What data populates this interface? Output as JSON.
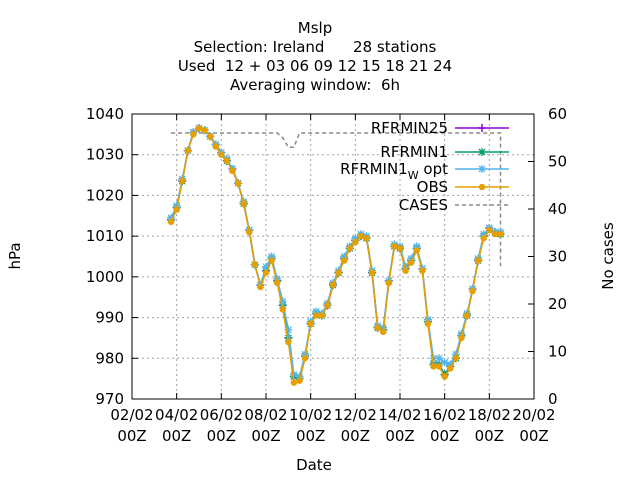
{
  "chart_data": {
    "type": "line",
    "title_lines": [
      "Mslp",
      "Selection: Ireland      28 stations",
      "Used  12 + 03 06 09 12 15 18 21 24",
      "Averaging window:  6h"
    ],
    "xlabel": "Date",
    "ylabel": "hPa",
    "y2label": "No cases",
    "x_range_days": [
      0,
      18
    ],
    "ylim": [
      970,
      1040
    ],
    "y2lim": [
      0,
      60
    ],
    "x_ticks": [
      {
        "day": 0,
        "line1": "02/02",
        "line2": "00Z"
      },
      {
        "day": 2,
        "line1": "04/02",
        "line2": "00Z"
      },
      {
        "day": 4,
        "line1": "06/02",
        "line2": "00Z"
      },
      {
        "day": 6,
        "line1": "08/02",
        "line2": "00Z"
      },
      {
        "day": 8,
        "line1": "10/02",
        "line2": "00Z"
      },
      {
        "day": 10,
        "line1": "12/02",
        "line2": "00Z"
      },
      {
        "day": 12,
        "line1": "14/02",
        "line2": "00Z"
      },
      {
        "day": 14,
        "line1": "16/02",
        "line2": "00Z"
      },
      {
        "day": 16,
        "line1": "18/02",
        "line2": "00Z"
      },
      {
        "day": 18,
        "line1": "20/02",
        "line2": "00Z"
      }
    ],
    "y_ticks": [
      970,
      980,
      990,
      1000,
      1010,
      1020,
      1030,
      1040
    ],
    "y2_ticks": [
      0,
      10,
      20,
      30,
      40,
      50,
      60
    ],
    "legend_position": "top-right",
    "x": [
      1.75,
      2.0,
      2.25,
      2.5,
      2.75,
      3.0,
      3.25,
      3.5,
      3.75,
      4.0,
      4.25,
      4.5,
      4.75,
      5.0,
      5.25,
      5.5,
      5.75,
      6.0,
      6.25,
      6.5,
      6.75,
      7.0,
      7.25,
      7.5,
      7.75,
      8.0,
      8.25,
      8.5,
      8.75,
      9.0,
      9.25,
      9.5,
      9.75,
      10.0,
      10.25,
      10.5,
      10.75,
      11.0,
      11.25,
      11.5,
      11.75,
      12.0,
      12.25,
      12.5,
      12.75,
      13.0,
      13.25,
      13.5,
      13.75,
      14.0,
      14.25,
      14.5,
      14.75,
      15.0,
      15.25,
      15.5,
      15.75,
      16.0,
      16.25,
      16.5
    ],
    "series": [
      {
        "name": "RFRMIN25",
        "color": "#9400d3",
        "marker": "plus",
        "values": [
          1014,
          1017,
          1023.5,
          1031,
          1035.5,
          1036.5,
          1036,
          1034.5,
          1032.5,
          1030.5,
          1028.5,
          1026.5,
          1023,
          1018,
          1011.5,
          1003,
          998,
          1001.5,
          1004.5,
          999,
          993,
          985,
          975.5,
          975,
          980.5,
          988.5,
          991,
          990.5,
          993,
          998,
          1001,
          1004.5,
          1007,
          1009,
          1010,
          1009.5,
          1001,
          987.5,
          987,
          999,
          1007.5,
          1007,
          1002,
          1004,
          1007,
          1002,
          989,
          978.5,
          978.5,
          976,
          978,
          980,
          985.5,
          990.5,
          997,
          1004,
          1010,
          1012,
          1011,
          1010.5
        ]
      },
      {
        "name": "RFRMIN1",
        "color": "#009e73",
        "marker": "star",
        "values": [
          1014,
          1017,
          1023.5,
          1031,
          1035.5,
          1036.5,
          1036,
          1034.5,
          1032.5,
          1030.5,
          1028.5,
          1026.5,
          1023,
          1018,
          1011.5,
          1003,
          998,
          1001.5,
          1004.5,
          999,
          993,
          985,
          975.5,
          975,
          980.5,
          988.5,
          991,
          990.5,
          993,
          998,
          1001,
          1004.5,
          1007,
          1009,
          1010,
          1009.5,
          1001,
          987.5,
          987,
          999,
          1007.5,
          1007,
          1002,
          1004,
          1007,
          1002,
          989,
          978.5,
          978.5,
          976,
          978,
          980,
          985.5,
          990.5,
          997,
          1004,
          1010,
          1012,
          1011,
          1010.5
        ]
      },
      {
        "name": "RFRMIN1",
        "subscript": "W",
        "name_suffix": "opt",
        "color": "#56b4e9",
        "marker": "star",
        "values": [
          1014.5,
          1017.5,
          1024,
          1031,
          1035.5,
          1036.5,
          1036,
          1034.5,
          1032.5,
          1030.5,
          1029,
          1026.5,
          1023,
          1018.5,
          1011.5,
          1003,
          998,
          1002.5,
          1005,
          999.5,
          994,
          987,
          976,
          975.5,
          981,
          989,
          991.5,
          991,
          993.5,
          998.5,
          1001.5,
          1005,
          1007.5,
          1009.5,
          1010.5,
          1010,
          1001.5,
          988,
          987.5,
          999,
          1008,
          1007.5,
          1002.5,
          1004.5,
          1007.5,
          1002,
          989.5,
          980,
          980,
          979,
          978.5,
          981,
          986,
          991,
          997,
          1004.5,
          1010.5,
          1012,
          1011,
          1011
        ]
      },
      {
        "name": "OBS",
        "color": "#e69f00",
        "marker": "circle",
        "values": [
          1013.5,
          1016.5,
          1023.5,
          1031,
          1035,
          1036.5,
          1036,
          1034.5,
          1032,
          1030,
          1028.5,
          1026,
          1023,
          1018,
          1011,
          1003,
          997.5,
          1001,
          1004,
          998.5,
          992,
          984,
          974,
          974.5,
          980,
          988.5,
          990.5,
          990.5,
          993,
          998,
          1001,
          1004,
          1007,
          1008.5,
          1010,
          1009.5,
          1001,
          987.5,
          986.5,
          998.5,
          1007.5,
          1007,
          1001.5,
          1003.5,
          1006.5,
          1001.5,
          988.5,
          978,
          978,
          975.5,
          977.5,
          980,
          985,
          990.5,
          996.5,
          1004,
          1009.5,
          1011.5,
          1010.5,
          1010.5
        ]
      }
    ],
    "cases": {
      "name": "CASES",
      "color": "#888888",
      "style": "dashed",
      "x": [
        1.75,
        6.5,
        6.75,
        7.0,
        7.25,
        7.5,
        16.5,
        16.5
      ],
      "values": [
        56,
        56,
        55,
        53,
        53,
        56,
        56,
        28
      ]
    }
  }
}
